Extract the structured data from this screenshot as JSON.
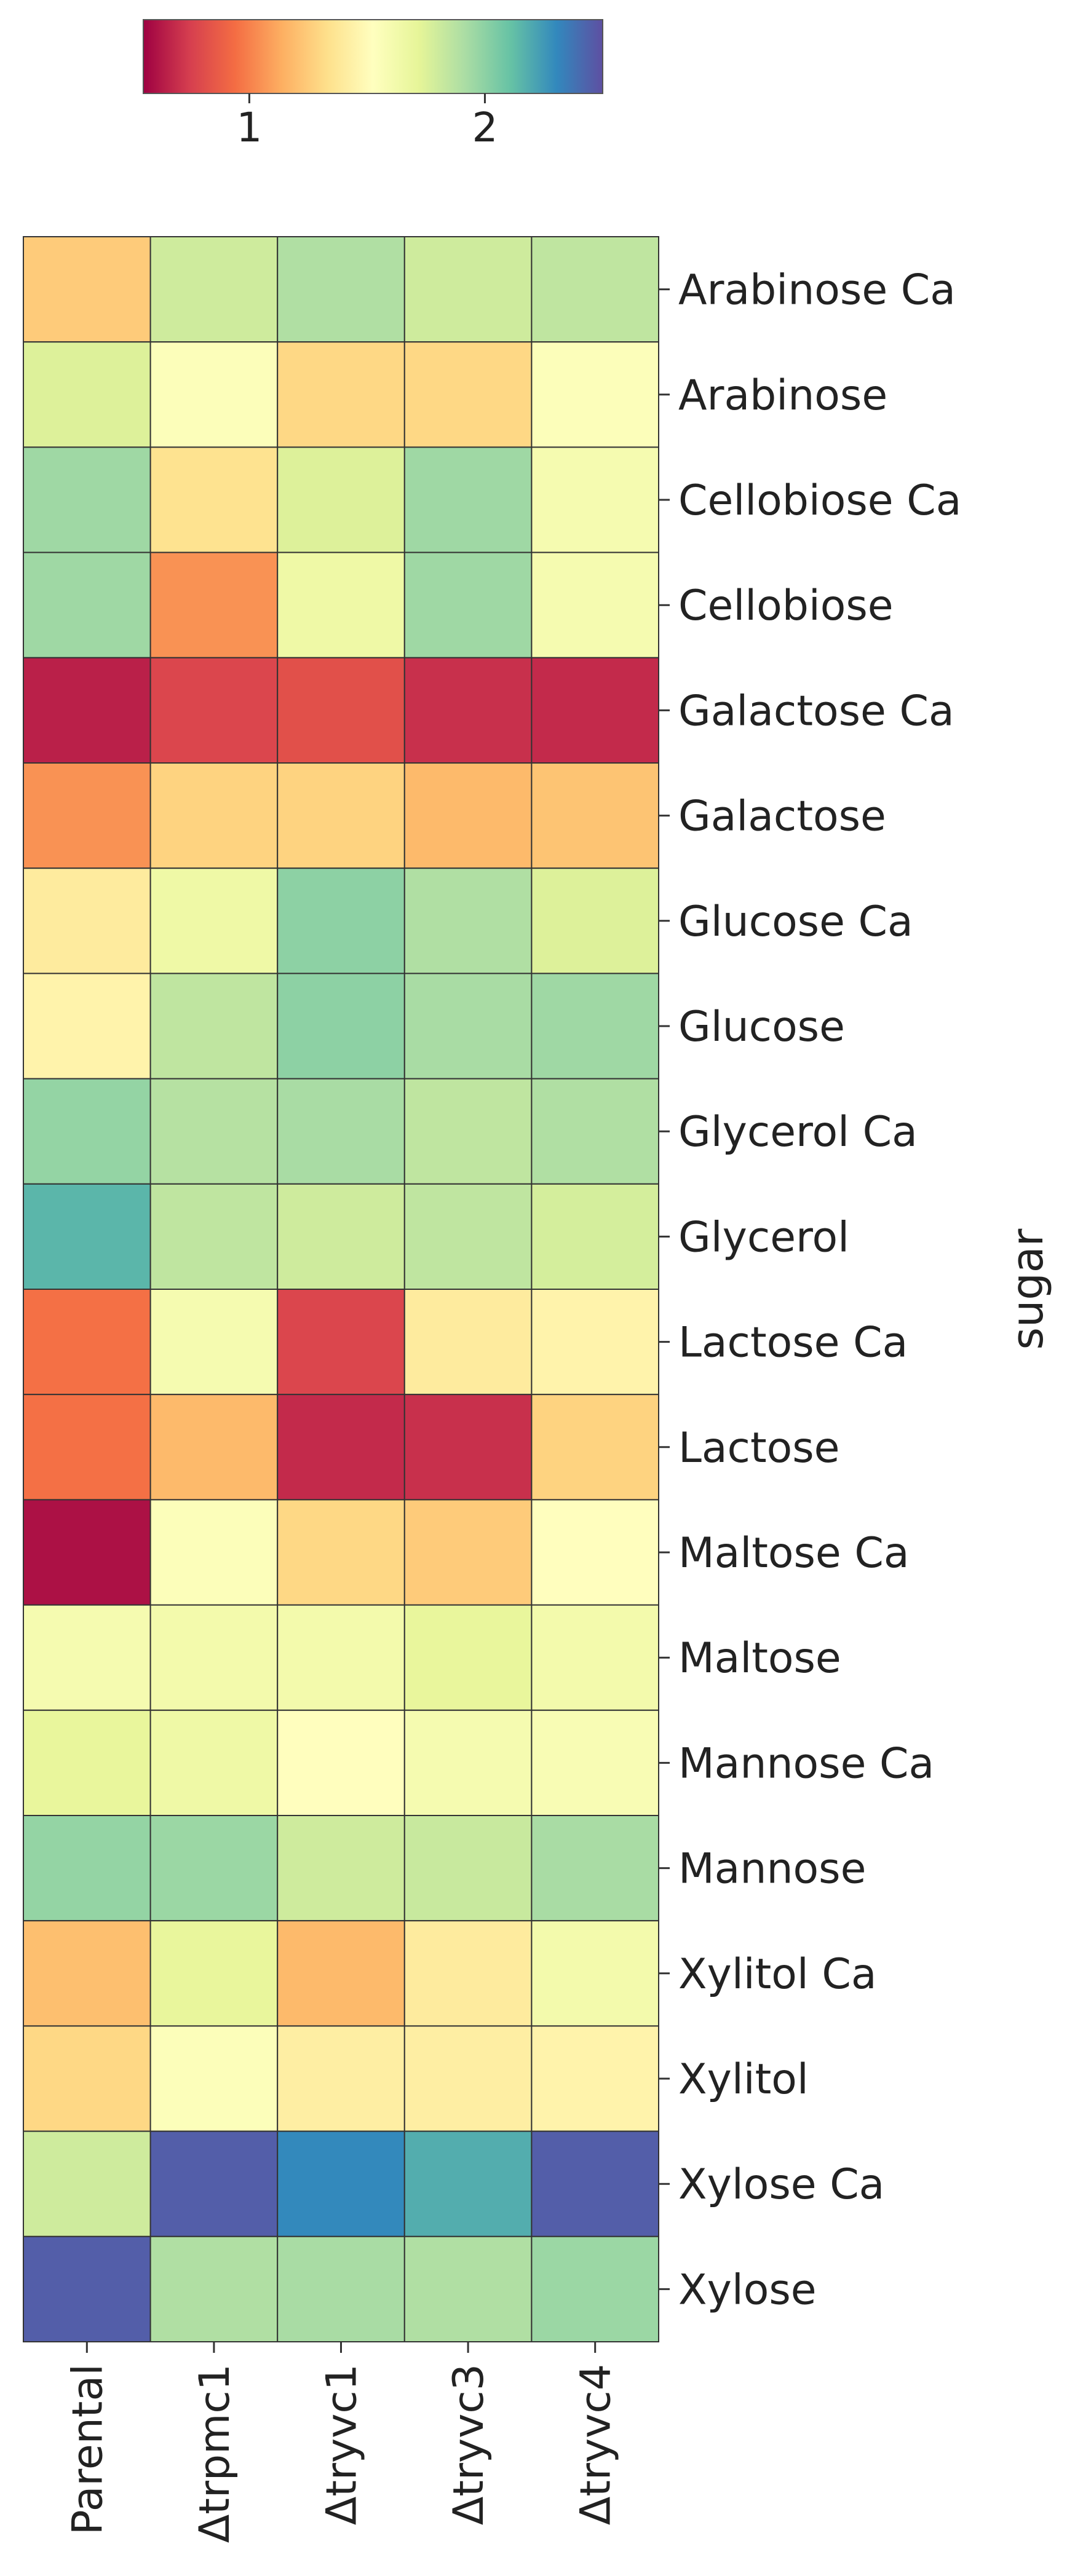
{
  "chart_data": {
    "type": "heatmap",
    "title": "",
    "xlabel": "",
    "ylabel": "sugar",
    "columns": [
      "Parental",
      "Δtrpmc1",
      "Δtryvc1",
      "Δtryvc3",
      "Δtryvc4"
    ],
    "rows": [
      "Arabinose Ca",
      "Arabinose",
      "Cellobiose Ca",
      "Cellobiose",
      "Galactose Ca",
      "Galactose",
      "Glucose Ca",
      "Glucose",
      "Glycerol Ca",
      "Glycerol",
      "Lactose Ca",
      "Lactose",
      "Maltose Ca",
      "Maltose",
      "Mannose Ca",
      "Mannose",
      "Xylitol Ca",
      "Xylitol",
      "Xylose Ca",
      "Xylose"
    ],
    "values": [
      [
        1.25,
        1.8,
        1.9,
        1.8,
        1.85
      ],
      [
        1.75,
        1.55,
        1.3,
        1.3,
        1.55
      ],
      [
        1.95,
        1.35,
        1.75,
        1.95,
        1.6
      ],
      [
        1.95,
        1.05,
        1.65,
        1.95,
        1.6
      ],
      [
        0.65,
        0.78,
        0.82,
        0.7,
        0.68
      ],
      [
        1.05,
        1.28,
        1.28,
        1.18,
        1.22
      ],
      [
        1.4,
        1.65,
        2.0,
        1.9,
        1.75
      ],
      [
        1.45,
        1.85,
        2.0,
        1.92,
        1.95
      ],
      [
        1.98,
        1.88,
        1.92,
        1.85,
        1.9
      ],
      [
        2.15,
        1.85,
        1.8,
        1.85,
        1.78
      ],
      [
        0.95,
        1.6,
        0.78,
        1.4,
        1.45
      ],
      [
        0.95,
        1.18,
        0.68,
        0.7,
        1.28
      ],
      [
        0.6,
        1.55,
        1.3,
        1.25,
        1.52
      ],
      [
        1.6,
        1.62,
        1.62,
        1.7,
        1.62
      ],
      [
        1.7,
        1.65,
        1.52,
        1.6,
        1.58
      ],
      [
        1.98,
        1.96,
        1.8,
        1.82,
        1.92
      ],
      [
        1.2,
        1.7,
        1.18,
        1.4,
        1.62
      ],
      [
        1.3,
        1.55,
        1.42,
        1.42,
        1.45
      ],
      [
        1.8,
        2.45,
        2.3,
        2.18,
        2.45
      ],
      [
        2.45,
        1.9,
        1.92,
        1.9,
        1.96
      ]
    ],
    "colormap": "Spectral",
    "colorbar": {
      "vmin": 0.55,
      "vmax": 2.5,
      "ticks": [
        1,
        2
      ],
      "tick_labels": [
        "1",
        "2"
      ],
      "position": "top",
      "colors": [
        "#9e0142",
        "#d53e4f",
        "#f46d43",
        "#fdae61",
        "#fee08b",
        "#ffffbf",
        "#e6f598",
        "#abdda4",
        "#66c2a5",
        "#3288bd",
        "#5e4fa2"
      ]
    },
    "grid": true,
    "cell_border_color": "#333333"
  }
}
